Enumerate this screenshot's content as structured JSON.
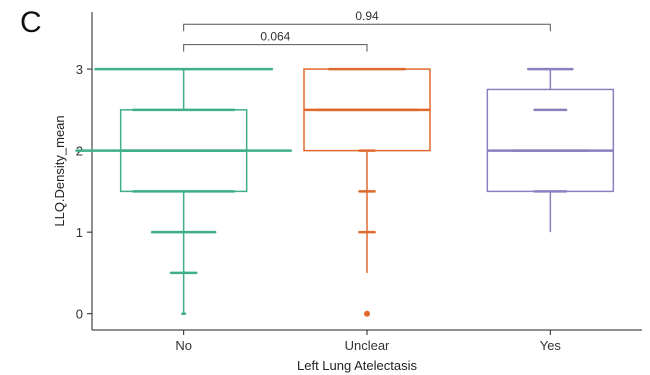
{
  "panel_letter": "C",
  "chart_data": {
    "type": "box",
    "xlabel": "Left Lung Atelectasis",
    "ylabel": "LLQ.Density_mean",
    "categories": [
      "No",
      "Unclear",
      "Yes"
    ],
    "ylim": [
      -0.2,
      3.7
    ],
    "yticks": [
      0,
      1,
      2,
      3
    ],
    "grid": false,
    "colors": [
      "#3fae8a",
      "#e0692d",
      "#8a7fbf"
    ],
    "boxes": [
      {
        "category": "No",
        "min": 0,
        "q1": 1.5,
        "median": 2,
        "q3": 2.5,
        "max": 3,
        "outliers": [],
        "jitter_points": [
          0,
          0.5,
          1,
          1.5,
          2,
          2.5,
          3
        ],
        "jitter_width": [
          0.02,
          0.2,
          0.5,
          0.8,
          1.7,
          0.8,
          1.4
        ]
      },
      {
        "category": "Unclear",
        "min": 0.5,
        "q1": 2,
        "median": 2.5,
        "q3": 3,
        "max": 3,
        "outliers": [
          0
        ],
        "jitter_points": [
          1,
          1.5,
          2,
          2.5,
          3
        ],
        "jitter_width": [
          0.12,
          0.12,
          0.12,
          0.8,
          0.6
        ]
      },
      {
        "category": "Yes",
        "min": 1,
        "q1": 1.5,
        "median": 2,
        "q3": 2.75,
        "max": 3,
        "outliers": [],
        "jitter_points": [
          1.5,
          2,
          2.5,
          3
        ],
        "jitter_width": [
          0.25,
          0.6,
          0.25,
          0.35
        ]
      }
    ],
    "comparisons": [
      {
        "from": "No",
        "to": "Unclear",
        "label": "0.064"
      },
      {
        "from": "No",
        "to": "Yes",
        "label": "0.94"
      }
    ]
  }
}
